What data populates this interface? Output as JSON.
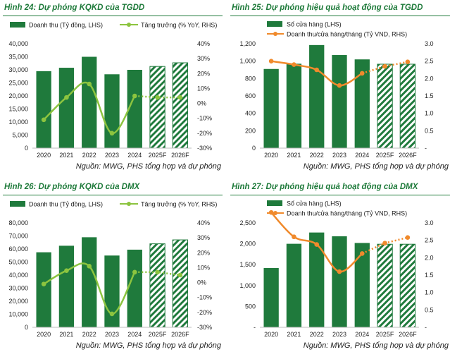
{
  "colors": {
    "bar": "#1f7a3c",
    "line_growth": "#8cc43f",
    "line_revenue": "#f08a2c",
    "title": "#1e7a3a"
  },
  "chart_data": [
    {
      "type": "bar",
      "title": "Hình 24: Dự phóng KQKD của TGDD",
      "source": "Nguồn: MWG, PHS tổng hợp và dự phóng",
      "categories": [
        "2020",
        "2021",
        "2022",
        "2023",
        "2024",
        "2025F",
        "2026F"
      ],
      "forecast_from": 5,
      "bars": {
        "name": "Doanh thu (Tỷ đồng, LHS)",
        "values": [
          29500,
          30800,
          35000,
          28300,
          30000,
          31300,
          32700
        ]
      },
      "line": {
        "name": "Tăng trưởng (% YoY, RHS)",
        "values": [
          -11,
          4,
          13,
          -20,
          5,
          4,
          4
        ]
      },
      "left_axis": {
        "min": 0,
        "max": 40000,
        "step": 5000,
        "ticks": [
          "0",
          "5,000",
          "10,000",
          "15,000",
          "20,000",
          "25,000",
          "30,000",
          "35,000",
          "40,000"
        ]
      },
      "right_axis": {
        "min": -30,
        "max": 40,
        "step": 10,
        "ticks": [
          "-30%",
          "-20%",
          "-10%",
          "0%",
          "10%",
          "20%",
          "30%",
          "40%"
        ]
      },
      "legend": "top"
    },
    {
      "type": "bar",
      "title": "Hình 25: Dự phóng hiệu quả hoạt động của TGDD",
      "source": "Nguồn: MWG, PHS tổng hợp và dự phóng",
      "categories": [
        "2020",
        "2021",
        "2022",
        "2023",
        "2024",
        "2025F",
        "2026F"
      ],
      "forecast_from": 5,
      "bars": {
        "name": "Số cửa hàng (LHS)",
        "values": [
          910,
          970,
          1185,
          1070,
          1020,
          965,
          965
        ]
      },
      "line": {
        "name": "Doanh thu/cửa hàng/tháng (Tỷ VND, RHS)",
        "values": [
          2.5,
          2.4,
          2.25,
          1.8,
          2.15,
          2.35,
          2.48
        ]
      },
      "left_axis": {
        "min": 0,
        "max": 1200,
        "step": 200,
        "ticks": [
          "0",
          "200",
          "400",
          "600",
          "800",
          "1,000",
          "1,200"
        ]
      },
      "right_axis": {
        "min": 0,
        "max": 3,
        "step": 0.5,
        "ticks": [
          "-",
          "0.5",
          "1.0",
          "1.5",
          "2.0",
          "2.5",
          "3.0"
        ]
      },
      "legend": "top"
    },
    {
      "type": "bar",
      "title": "Hình 26: Dự phóng KQKD của DMX",
      "source": "Nguồn: MWG, PHS tổng hợp và dự phóng",
      "categories": [
        "2020",
        "2021",
        "2022",
        "2023",
        "2024",
        "2025F",
        "2026F"
      ],
      "forecast_from": 5,
      "bars": {
        "name": "Doanh thu (Tỷ đồng, LHS)",
        "values": [
          57500,
          62500,
          69000,
          55000,
          59500,
          64000,
          67000
        ]
      },
      "line": {
        "name": "Tăng trưởng (% YoY, RHS)",
        "values": [
          -1,
          8,
          11,
          -21,
          7,
          7,
          5
        ]
      },
      "left_axis": {
        "min": 0,
        "max": 80000,
        "step": 10000,
        "ticks": [
          "0",
          "10,000",
          "20,000",
          "30,000",
          "40,000",
          "50,000",
          "60,000",
          "70,000",
          "80,000"
        ]
      },
      "right_axis": {
        "min": -30,
        "max": 40,
        "step": 10,
        "ticks": [
          "-30%",
          "-20%",
          "-10%",
          "0%",
          "10%",
          "20%",
          "30%",
          "40%"
        ]
      },
      "legend": "top"
    },
    {
      "type": "bar",
      "title": "Hình 27: Dự phóng hiệu quả hoạt động của DMX",
      "source": "Nguồn: MWG, PHS tổng hợp và dự phóng",
      "categories": [
        "2020",
        "2021",
        "2022",
        "2023",
        "2024",
        "2025F",
        "2026F"
      ],
      "forecast_from": 5,
      "bars": {
        "name": "Số cửa hàng (LHS)",
        "values": [
          1420,
          2000,
          2270,
          2180,
          2020,
          1990,
          1990
        ]
      },
      "line": {
        "name": "Doanh thu/cửa hàng/tháng (Tỷ VND, RHS)",
        "values": [
          3.3,
          2.6,
          2.38,
          1.6,
          2.12,
          2.42,
          2.58
        ]
      },
      "left_axis": {
        "min": 0,
        "max": 2500,
        "step": 500,
        "ticks": [
          "-",
          "500",
          "1,000",
          "1,500",
          "2,000",
          "2,500"
        ]
      },
      "right_axis": {
        "min": 0,
        "max": 3,
        "step": 0.5,
        "ticks": [
          "-",
          "0.5",
          "1.0",
          "1.5",
          "2.0",
          "2.5",
          "3.0"
        ]
      },
      "legend": "top"
    }
  ]
}
